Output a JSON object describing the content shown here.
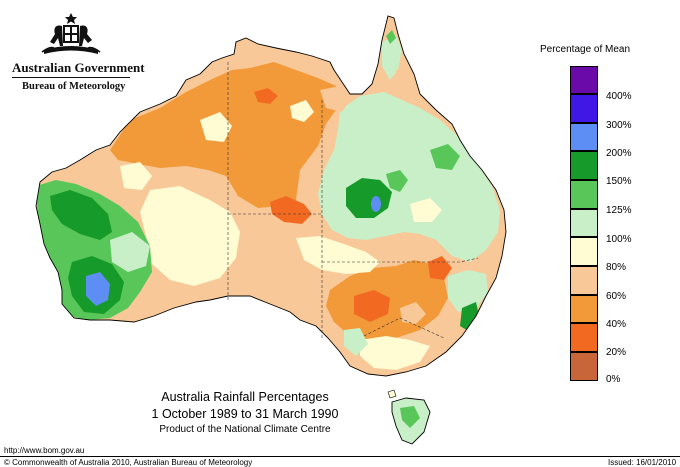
{
  "header": {
    "government": "Australian Government",
    "bureau": "Bureau of Meteorology",
    "crest_icon": "coat-of-arms-icon"
  },
  "legend": {
    "title": "Percentage of Mean",
    "items": [
      {
        "label": "400%",
        "color": "#6a0aa8"
      },
      {
        "label": "300%",
        "color": "#3f18e6"
      },
      {
        "label": "200%",
        "color": "#5d8ef4"
      },
      {
        "label": "150%",
        "color": "#169a29"
      },
      {
        "label": "125%",
        "color": "#59c659"
      },
      {
        "label": "100%",
        "color": "#c8efc8"
      },
      {
        "label": "80%",
        "color": "#fffbd2"
      },
      {
        "label": "60%",
        "color": "#f8c898"
      },
      {
        "label": "40%",
        "color": "#f29a3a"
      },
      {
        "label": "20%",
        "color": "#f26a22"
      },
      {
        "label": "0%",
        "color": "#c8663a"
      }
    ]
  },
  "map": {
    "title": "Australia Rainfall Percentages",
    "period": "1 October 1989 to 31 March 1990",
    "product": "Product of the National Climate Centre"
  },
  "footer": {
    "url": "http://www.bom.gov.au",
    "copyright": "© Commonwealth of Australia 2010, Australian Bureau of Meteorology",
    "issued": "Issued: 16/01/2010"
  }
}
